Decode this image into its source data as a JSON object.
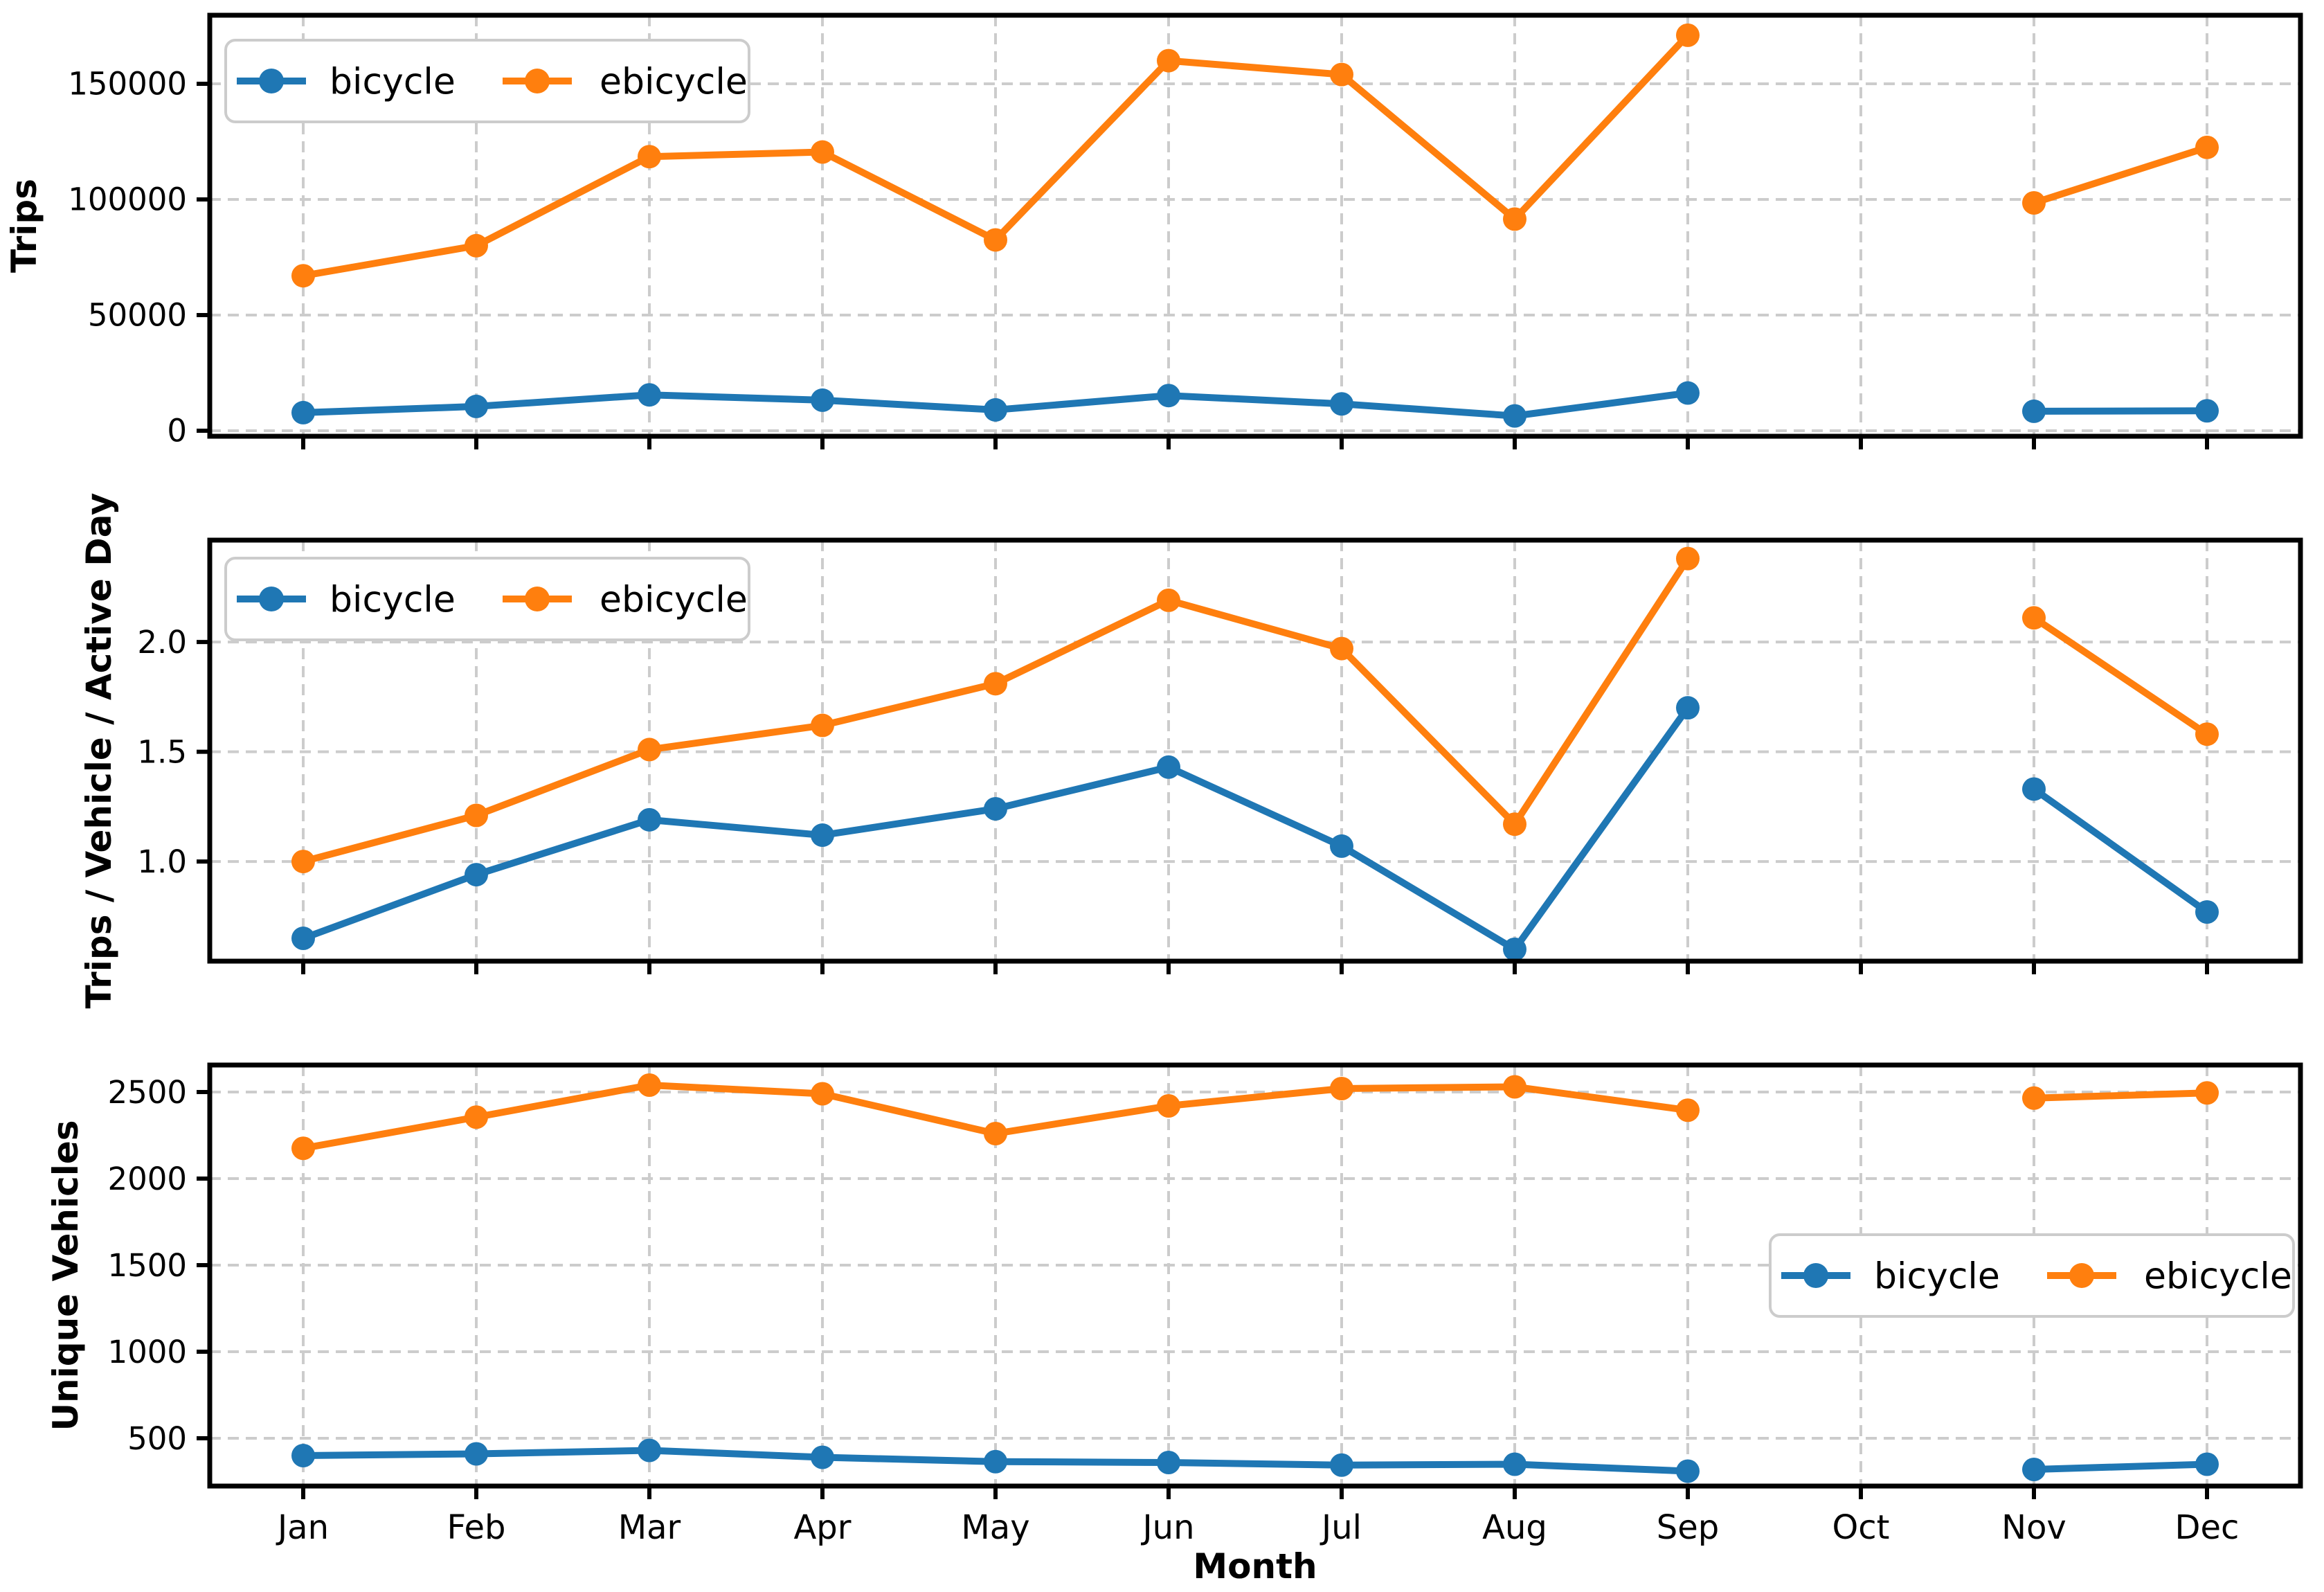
{
  "figure": {
    "xlabel": "Month",
    "categories": [
      "Jan",
      "Feb",
      "Mar",
      "Apr",
      "May",
      "Jun",
      "Jul",
      "Aug",
      "Sep",
      "Oct",
      "Nov",
      "Dec"
    ],
    "legend_labels": [
      "bicycle",
      "ebicycle"
    ],
    "colors": {
      "bicycle": "#1f77b4",
      "ebicycle": "#ff7f0e",
      "grid": "#cccccc",
      "spine": "#000000",
      "text": "#000000",
      "legend_border": "#cccccc",
      "background": "#ffffff"
    }
  },
  "chart_data": [
    {
      "type": "line",
      "ylabel": "Trips",
      "categories": [
        "Jan",
        "Feb",
        "Mar",
        "Apr",
        "May",
        "Jun",
        "Jul",
        "Aug",
        "Sep",
        "Oct",
        "Nov",
        "Dec"
      ],
      "series": [
        {
          "name": "bicycle",
          "values": [
            7800,
            10500,
            15500,
            13200,
            9000,
            15200,
            11600,
            6400,
            16300,
            null,
            8400,
            8600
          ]
        },
        {
          "name": "ebicycle",
          "values": [
            67000,
            80000,
            118500,
            120500,
            82500,
            160000,
            154000,
            91500,
            171000,
            null,
            98500,
            122500
          ]
        }
      ],
      "yticks": [
        0,
        50000,
        100000,
        150000
      ],
      "ytick_labels": [
        "0",
        "50000",
        "100000",
        "150000"
      ],
      "ylim": [
        -2400,
        179640
      ],
      "grid": true,
      "legend_position": "upper-left"
    },
    {
      "type": "line",
      "ylabel": "Trips / Vehicle / Active Day",
      "categories": [
        "Jan",
        "Feb",
        "Mar",
        "Apr",
        "May",
        "Jun",
        "Jul",
        "Aug",
        "Sep",
        "Oct",
        "Nov",
        "Dec"
      ],
      "series": [
        {
          "name": "bicycle",
          "values": [
            0.65,
            0.94,
            1.19,
            1.12,
            1.24,
            1.43,
            1.07,
            0.6,
            1.7,
            null,
            1.33,
            0.77
          ]
        },
        {
          "name": "ebicycle",
          "values": [
            1.0,
            1.21,
            1.51,
            1.62,
            1.81,
            2.19,
            1.97,
            1.17,
            2.38,
            null,
            2.11,
            1.58
          ]
        }
      ],
      "yticks": [
        1.0,
        1.5,
        2.0
      ],
      "ytick_labels": [
        "1.0",
        "1.5",
        "2.0"
      ],
      "ylim": [
        0.546,
        2.464
      ],
      "grid": true,
      "legend_position": "upper-left"
    },
    {
      "type": "line",
      "ylabel": "Unique Vehicles",
      "categories": [
        "Jan",
        "Feb",
        "Mar",
        "Apr",
        "May",
        "Jun",
        "Jul",
        "Aug",
        "Sep",
        "Oct",
        "Nov",
        "Dec"
      ],
      "series": [
        {
          "name": "bicycle",
          "values": [
            400,
            410,
            430,
            390,
            365,
            360,
            345,
            350,
            310,
            null,
            320,
            350
          ]
        },
        {
          "name": "ebicycle",
          "values": [
            2175,
            2355,
            2540,
            2490,
            2260,
            2420,
            2520,
            2530,
            2395,
            null,
            2465,
            2495
          ]
        }
      ],
      "yticks": [
        500,
        1000,
        1500,
        2000,
        2500
      ],
      "ytick_labels": [
        "500",
        "1000",
        "1500",
        "2000",
        "2500"
      ],
      "ylim": [
        224,
        2656
      ],
      "grid": true,
      "legend_position": "center-right"
    }
  ]
}
